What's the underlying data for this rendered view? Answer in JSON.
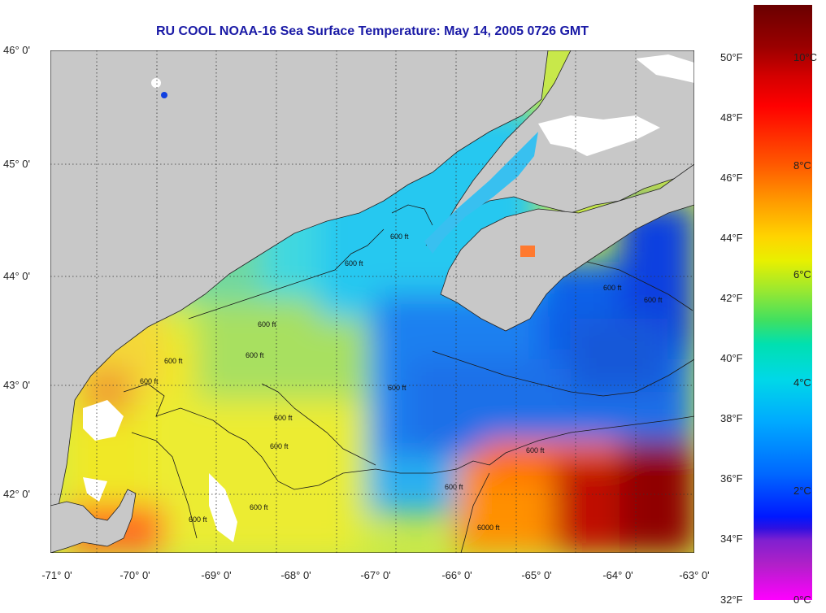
{
  "title": "RU COOL  NOAA-16  Sea Surface Temperature:  May 14, 2005 0726 GMT",
  "lat_labels": [
    "46° 0'",
    "45° 0'",
    "44° 0'",
    "43° 0'",
    "42° 0'"
  ],
  "lon_labels": [
    "-71° 0'",
    "-70° 0'",
    "-69° 0'",
    "-68° 0'",
    "-67° 0'",
    "-66° 0'",
    "-65° 0'",
    "-64° 0'",
    "-63° 0'"
  ],
  "contour_labels": [
    "600 ft",
    "6000 ft"
  ],
  "colorbar": {
    "fahrenheit_labels": [
      "50°F",
      "48°F",
      "46°F",
      "44°F",
      "42°F",
      "40°F",
      "38°F",
      "36°F",
      "34°F",
      "32°F"
    ],
    "celsius_labels": [
      "10°C",
      "8°C",
      "6°C",
      "4°C",
      "2°C",
      "0°C"
    ]
  },
  "colors": {
    "land": "#c8c8c8",
    "cloud": "#ffffff",
    "title": "#1a1aa6"
  }
}
